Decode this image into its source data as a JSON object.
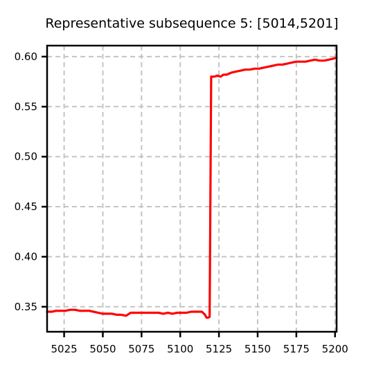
{
  "chart_data": {
    "type": "line",
    "title": "Representative subsequence 5: [5014,5201]",
    "xlabel": "",
    "ylabel": "",
    "xlim": [
      5014,
      5201
    ],
    "ylim": [
      0.325,
      0.611
    ],
    "grid": true,
    "x_ticks": [
      5025,
      5050,
      5075,
      5100,
      5125,
      5150,
      5175,
      5200
    ],
    "y_ticks": [
      0.35,
      0.4,
      0.45,
      0.5,
      0.55,
      0.6
    ],
    "x_tick_labels": [
      "5025",
      "5050",
      "5075",
      "5100",
      "5125",
      "5150",
      "5175",
      "5200"
    ],
    "y_tick_labels": [
      "0.35",
      "0.40",
      "0.45",
      "0.50",
      "0.55",
      "0.60"
    ],
    "series": [
      {
        "color": "#ff0000",
        "x": [
          5014,
          5017,
          5020,
          5023,
          5026,
          5029,
          5032,
          5035,
          5038,
          5041,
          5044,
          5047,
          5050,
          5053,
          5056,
          5059,
          5062,
          5065,
          5068,
          5071,
          5074,
          5077,
          5080,
          5083,
          5086,
          5089,
          5092,
          5095,
          5098,
          5101,
          5104,
          5107,
          5110,
          5112,
          5114,
          5116,
          5117,
          5118,
          5119,
          5120,
          5122,
          5124,
          5126,
          5128,
          5130,
          5133,
          5136,
          5139,
          5142,
          5145,
          5148,
          5151,
          5154,
          5157,
          5160,
          5163,
          5166,
          5169,
          5172,
          5175,
          5178,
          5181,
          5184,
          5187,
          5190,
          5193,
          5196,
          5199,
          5201
        ],
        "y": [
          0.345,
          0.345,
          0.346,
          0.346,
          0.346,
          0.347,
          0.347,
          0.346,
          0.346,
          0.346,
          0.345,
          0.344,
          0.343,
          0.343,
          0.343,
          0.342,
          0.342,
          0.341,
          0.344,
          0.344,
          0.344,
          0.344,
          0.344,
          0.344,
          0.344,
          0.343,
          0.344,
          0.343,
          0.344,
          0.344,
          0.344,
          0.345,
          0.345,
          0.345,
          0.345,
          0.342,
          0.339,
          0.339,
          0.34,
          0.58,
          0.58,
          0.581,
          0.58,
          0.582,
          0.582,
          0.584,
          0.585,
          0.586,
          0.587,
          0.587,
          0.588,
          0.588,
          0.589,
          0.59,
          0.591,
          0.592,
          0.592,
          0.593,
          0.594,
          0.595,
          0.595,
          0.595,
          0.596,
          0.597,
          0.596,
          0.596,
          0.597,
          0.598,
          0.599
        ]
      }
    ]
  }
}
